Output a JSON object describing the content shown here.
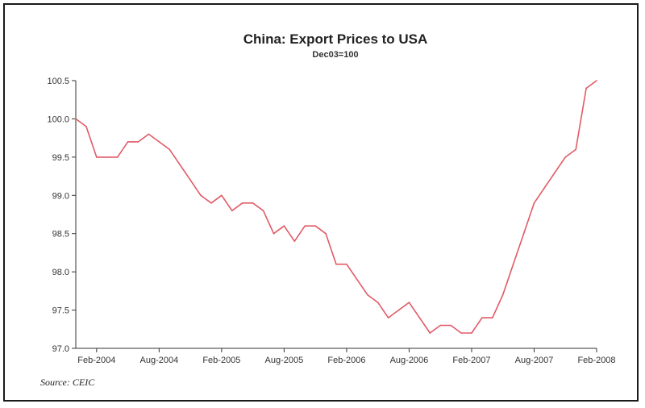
{
  "chart_data": {
    "type": "line",
    "title": "China: Export Prices to USA",
    "subtitle": "Dec03=100",
    "xlabel": "",
    "ylabel": "",
    "source": "Source: CEIC",
    "ylim": [
      97.0,
      100.5
    ],
    "yticks": [
      "100.5",
      "100.0",
      "99.5",
      "99.0",
      "98.5",
      "98.0",
      "97.5",
      "97.0"
    ],
    "xticks": [
      "Feb-2004",
      "Aug-2004",
      "Feb-2005",
      "Aug-2005",
      "Feb-2006",
      "Aug-2006",
      "Feb-2007",
      "Aug-2007",
      "Feb-2008"
    ],
    "grid": false,
    "legend": "none",
    "x": [
      "Dec-2003",
      "Jan-2004",
      "Feb-2004",
      "Mar-2004",
      "Apr-2004",
      "May-2004",
      "Jun-2004",
      "Jul-2004",
      "Aug-2004",
      "Sep-2004",
      "Oct-2004",
      "Nov-2004",
      "Dec-2004",
      "Jan-2005",
      "Feb-2005",
      "Mar-2005",
      "Apr-2005",
      "May-2005",
      "Jun-2005",
      "Jul-2005",
      "Aug-2005",
      "Sep-2005",
      "Oct-2005",
      "Nov-2005",
      "Dec-2005",
      "Jan-2006",
      "Feb-2006",
      "Mar-2006",
      "Apr-2006",
      "May-2006",
      "Jun-2006",
      "Jul-2006",
      "Aug-2006",
      "Sep-2006",
      "Oct-2006",
      "Nov-2006",
      "Dec-2006",
      "Jan-2007",
      "Feb-2007",
      "Mar-2007",
      "Apr-2007",
      "May-2007",
      "Jun-2007",
      "Jul-2007",
      "Aug-2007",
      "Sep-2007",
      "Oct-2007",
      "Nov-2007",
      "Dec-2007",
      "Jan-2008",
      "Feb-2008"
    ],
    "series": [
      {
        "color": "#e05a66",
        "values": [
          100.0,
          99.9,
          99.5,
          99.5,
          99.5,
          99.7,
          99.7,
          99.8,
          99.7,
          99.6,
          99.4,
          99.2,
          99.0,
          98.9,
          99.0,
          98.8,
          98.9,
          98.9,
          98.8,
          98.5,
          98.6,
          98.4,
          98.6,
          98.6,
          98.5,
          98.1,
          98.1,
          97.9,
          97.7,
          97.6,
          97.4,
          97.5,
          97.6,
          97.4,
          97.2,
          97.3,
          97.3,
          97.2,
          97.2,
          97.4,
          97.4,
          97.7,
          98.1,
          98.5,
          98.9,
          99.1,
          99.3,
          99.5,
          99.6,
          100.4,
          100.5
        ]
      }
    ]
  }
}
